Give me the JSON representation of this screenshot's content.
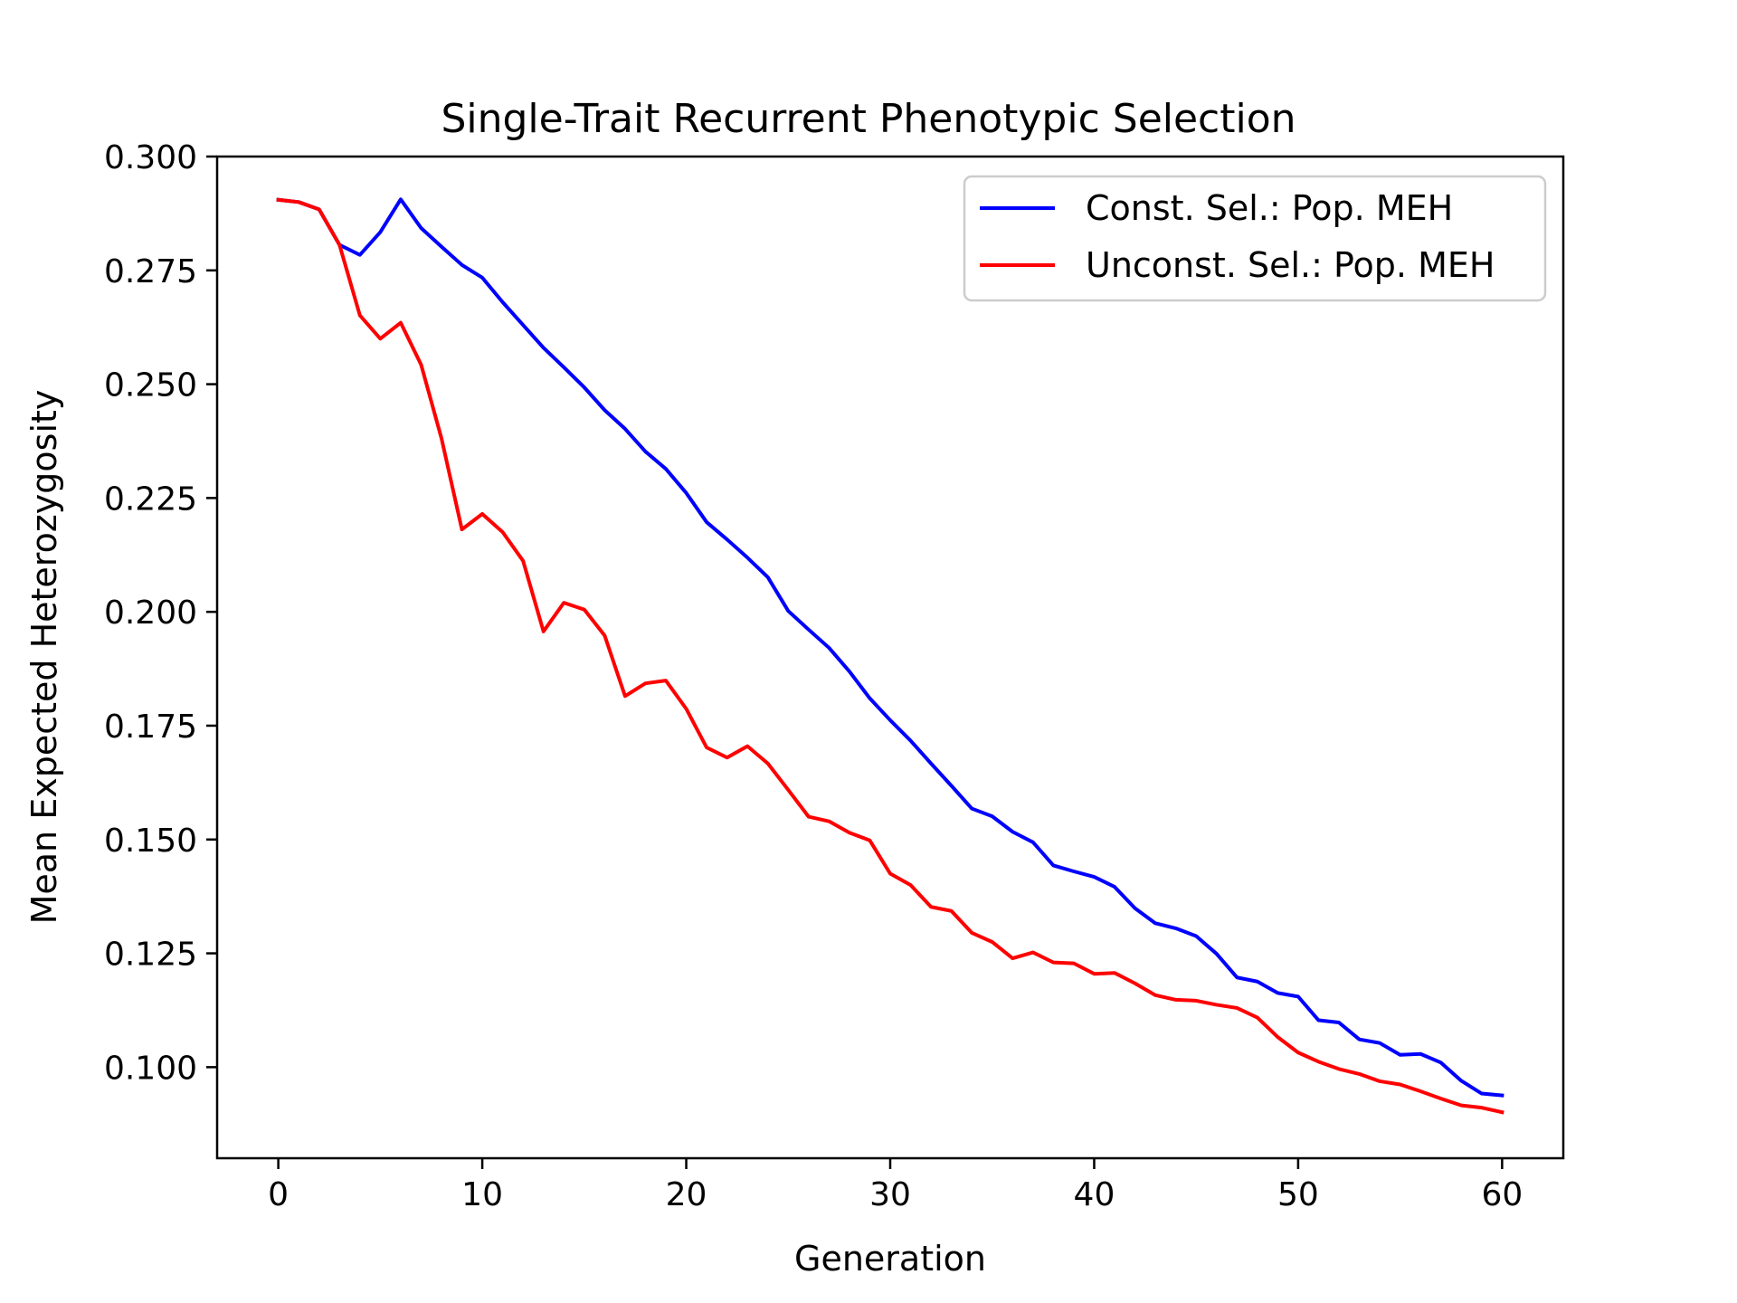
{
  "chart_data": {
    "type": "line",
    "title": "Single-Trait Recurrent Phenotypic Selection",
    "xlabel": "Generation",
    "ylabel": "Mean Expected Heterozygosity",
    "xlim": [
      -3,
      63
    ],
    "ylim": [
      0.08,
      0.3
    ],
    "xticks": [
      0,
      10,
      20,
      30,
      40,
      50,
      60
    ],
    "yticks": [
      0.1,
      0.125,
      0.15,
      0.175,
      0.2,
      0.225,
      0.25,
      0.275,
      0.3
    ],
    "xtick_labels": [
      "0",
      "10",
      "20",
      "30",
      "40",
      "50",
      "60"
    ],
    "ytick_labels": [
      "0.100",
      "0.125",
      "0.150",
      "0.175",
      "0.200",
      "0.225",
      "0.250",
      "0.275",
      "0.300"
    ],
    "grid": false,
    "legend_position": "top-right",
    "x": [
      0,
      1,
      2,
      3,
      4,
      5,
      6,
      7,
      8,
      9,
      10,
      11,
      12,
      13,
      14,
      15,
      16,
      17,
      18,
      19,
      20,
      21,
      22,
      23,
      24,
      25,
      26,
      27,
      28,
      29,
      30,
      31,
      32,
      33,
      34,
      35,
      36,
      37,
      38,
      39,
      40,
      41,
      42,
      43,
      44,
      45,
      46,
      47,
      48,
      49,
      50,
      51,
      52,
      53,
      54,
      55,
      56,
      57,
      58,
      59,
      60
    ],
    "series": [
      {
        "name": "Const. Sel.: Pop. MEH",
        "color": "#0000ff",
        "values": [
          0.2905,
          0.29,
          0.2884,
          0.2806,
          0.2784,
          0.2834,
          0.2906,
          0.2843,
          0.2802,
          0.2762,
          0.2734,
          0.268,
          0.263,
          0.258,
          0.2537,
          0.2493,
          0.2443,
          0.2402,
          0.2352,
          0.2314,
          0.2261,
          0.2197,
          0.2159,
          0.2119,
          0.2076,
          0.2002,
          0.1961,
          0.1921,
          0.1869,
          0.181,
          0.1762,
          0.1717,
          0.1667,
          0.1618,
          0.1568,
          0.1551,
          0.1517,
          0.1494,
          0.1443,
          0.143,
          0.1418,
          0.1396,
          0.1349,
          0.1316,
          0.1305,
          0.1288,
          0.1249,
          0.1197,
          0.1188,
          0.1163,
          0.1155,
          0.1103,
          0.1098,
          0.1061,
          0.1053,
          0.1027,
          0.1029,
          0.101,
          0.097,
          0.0942,
          0.0938
        ]
      },
      {
        "name": "Unconst. Sel.: Pop. MEH",
        "color": "#ff0000",
        "values": [
          0.2905,
          0.29,
          0.2884,
          0.2806,
          0.2651,
          0.26,
          0.2635,
          0.2543,
          0.2381,
          0.2181,
          0.2215,
          0.2175,
          0.2112,
          0.1957,
          0.202,
          0.2005,
          0.1948,
          0.1815,
          0.1843,
          0.1849,
          0.1787,
          0.1702,
          0.168,
          0.1705,
          0.1667,
          0.1609,
          0.155,
          0.154,
          0.1515,
          0.1498,
          0.1425,
          0.14,
          0.1352,
          0.1343,
          0.1295,
          0.1275,
          0.1239,
          0.1252,
          0.123,
          0.1228,
          0.1205,
          0.1207,
          0.1184,
          0.1158,
          0.1148,
          0.1146,
          0.1137,
          0.113,
          0.1109,
          0.1066,
          0.1032,
          0.1012,
          0.0996,
          0.0985,
          0.0969,
          0.0962,
          0.0947,
          0.0931,
          0.0916,
          0.0911,
          0.0901
        ]
      }
    ]
  }
}
